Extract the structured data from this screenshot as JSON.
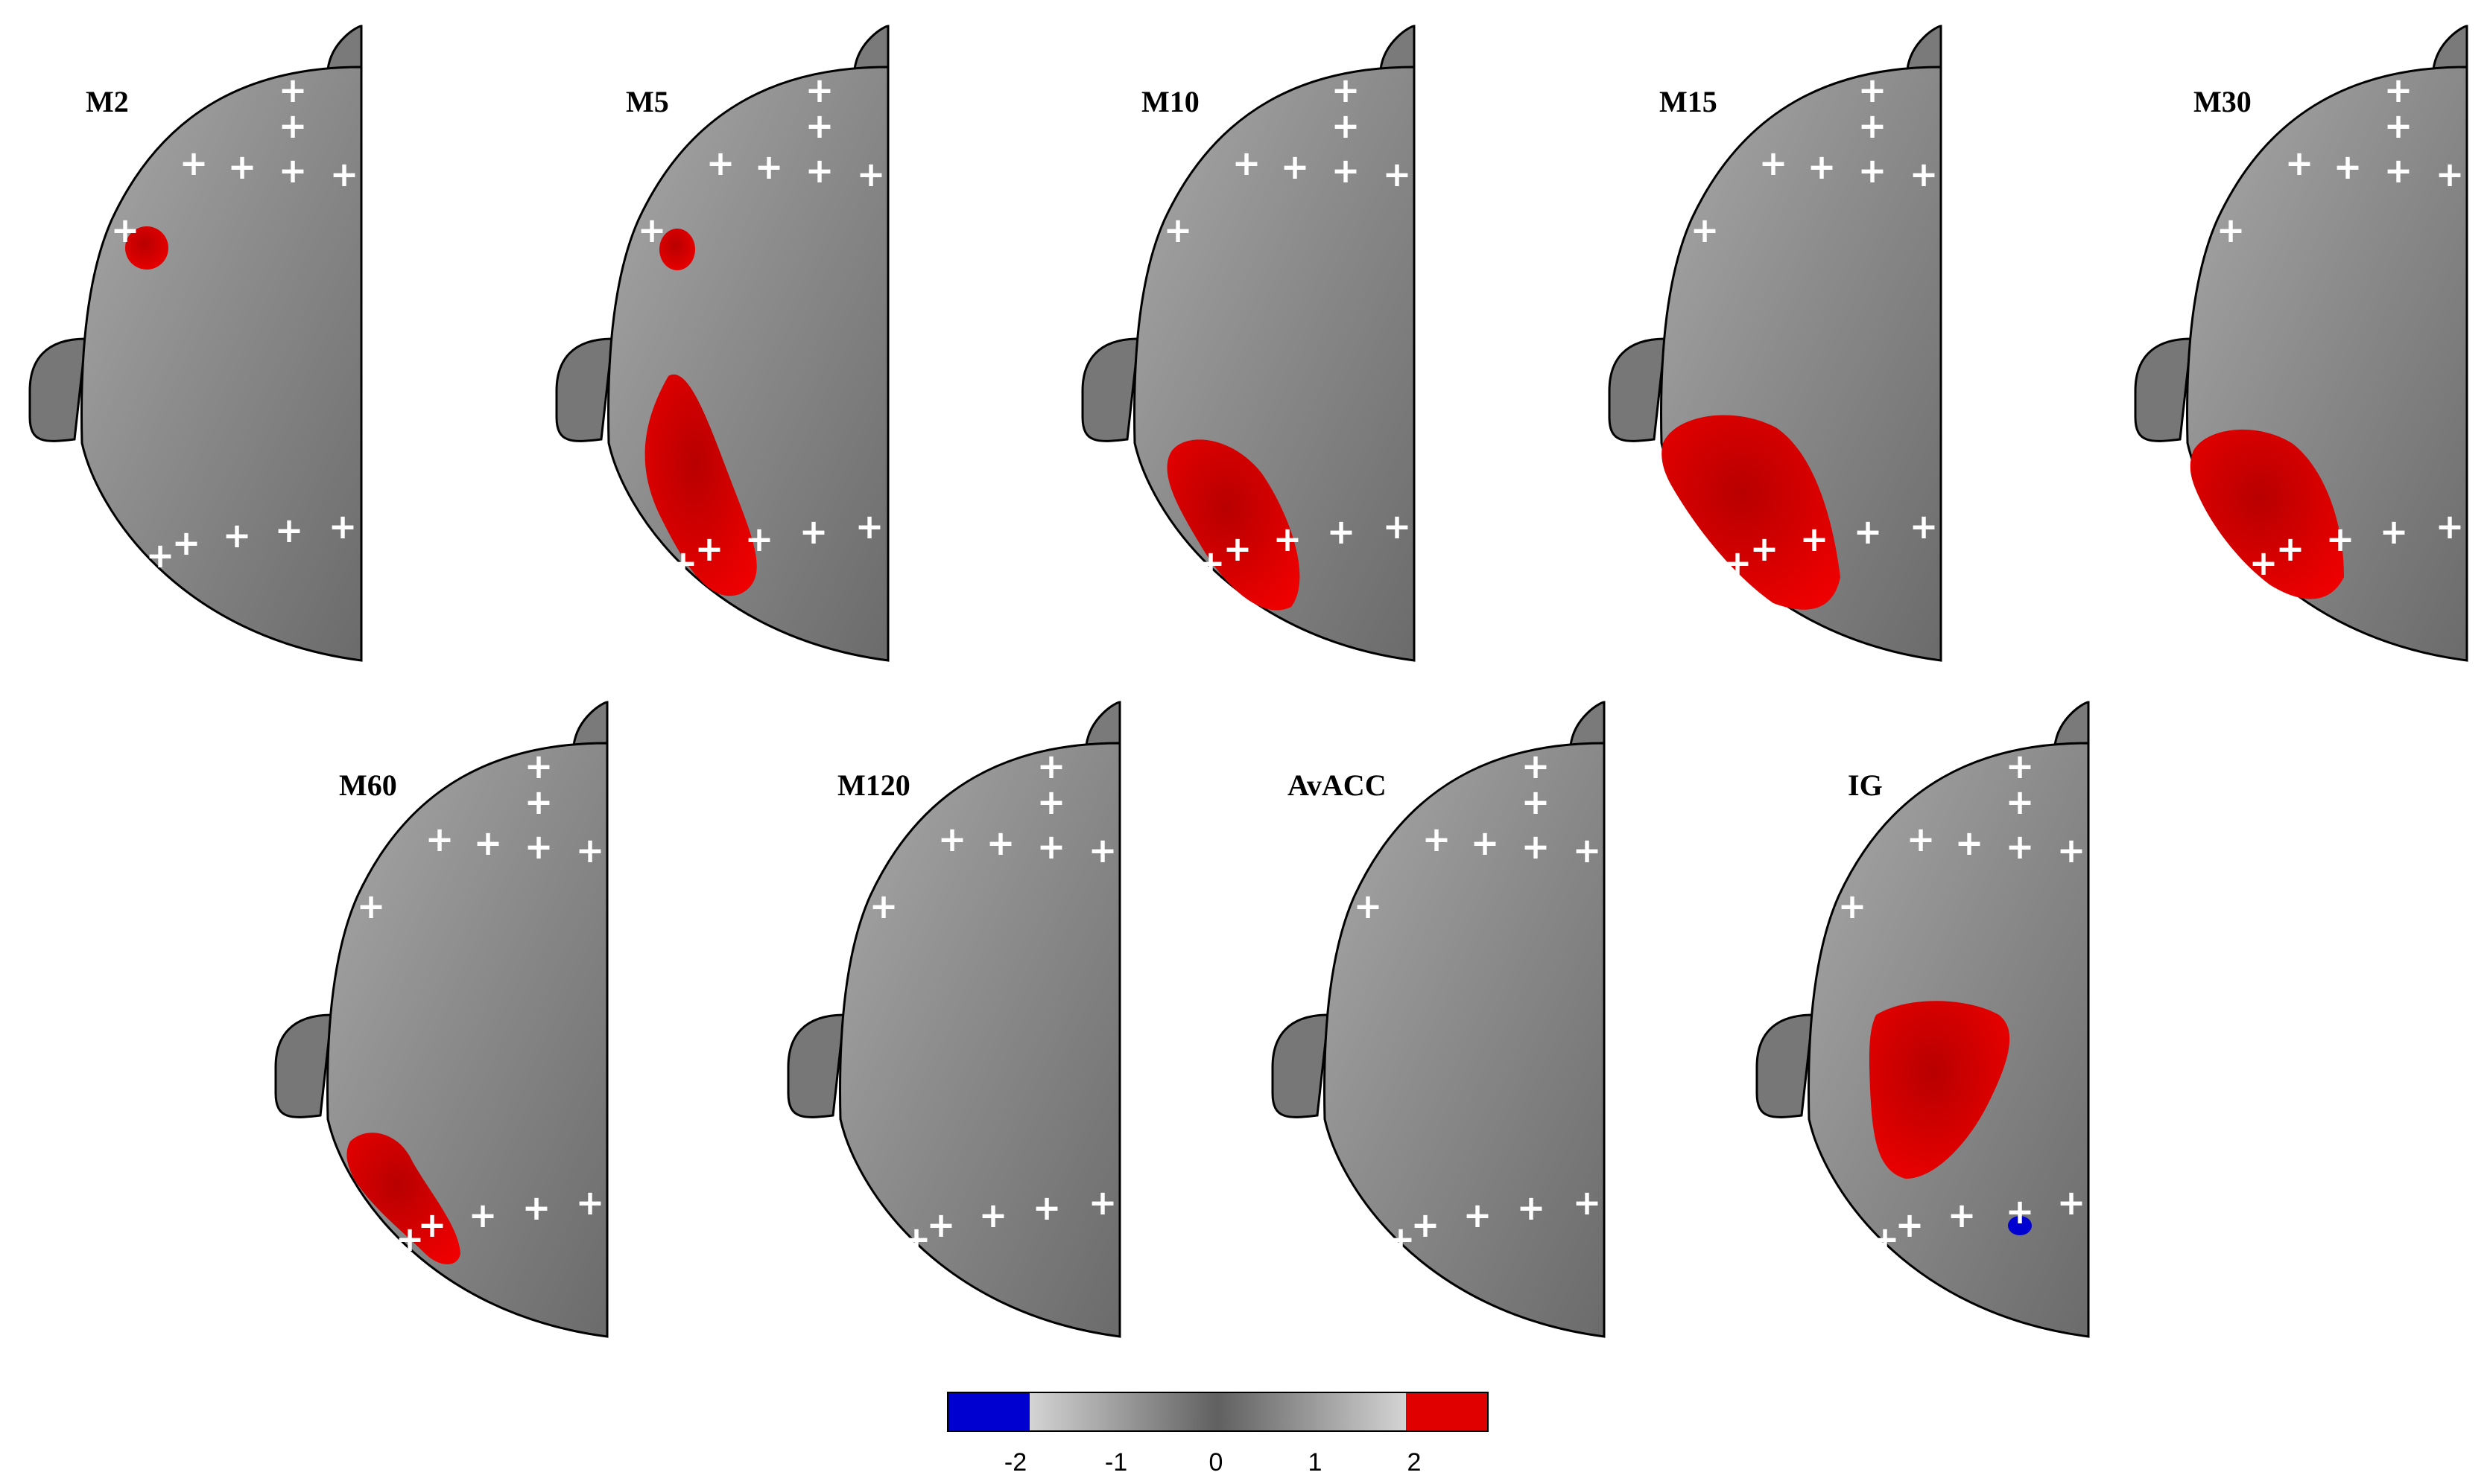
{
  "panels": [
    {
      "label": "M2"
    },
    {
      "label": "M5"
    },
    {
      "label": "M10"
    },
    {
      "label": "M15"
    },
    {
      "label": "M30"
    },
    {
      "label": "M60"
    },
    {
      "label": "M120"
    },
    {
      "label": "AvACC"
    },
    {
      "label": "IG"
    }
  ],
  "colorbar": {
    "ticks": [
      "-2",
      "-1",
      "0",
      "1",
      "2"
    ],
    "negative_color": "#0000d0",
    "positive_color": "#e00000",
    "neutral_dark": "#606060",
    "neutral_light": "#c8c8c8"
  },
  "colors": {
    "head_fill": "#8e8e8e",
    "outline": "#000000",
    "sensor_marker": "#ffffff",
    "cluster_positive": "#e00000",
    "cluster_negative": "#0000d0"
  }
}
